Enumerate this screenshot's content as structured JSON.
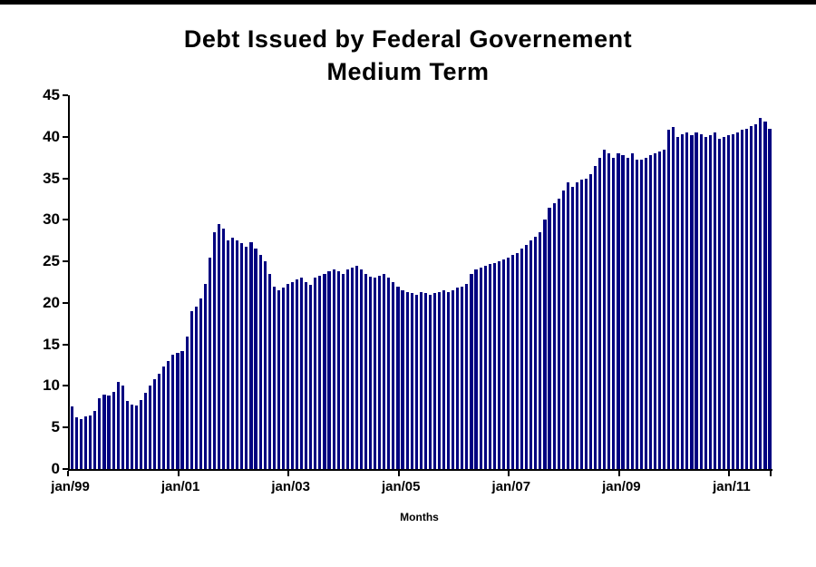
{
  "page": {
    "title_line1": "Debt Issued by Federal Governement",
    "title_line2": "Medium Term",
    "xlabel": "Months"
  },
  "chart_data": {
    "type": "bar",
    "title": "Debt Issued by Federal Governement Medium Term",
    "xlabel": "Months",
    "ylabel": "",
    "ylim": [
      0,
      45
    ],
    "yticks": [
      0,
      5,
      10,
      15,
      20,
      25,
      30,
      35,
      40,
      45
    ],
    "grid": false,
    "legend": "none",
    "bar_color": "#000080",
    "x_start": "jan/99",
    "x_tick_labels": [
      "jan/99",
      "jan/01",
      "jan/03",
      "jan/05",
      "jan/07",
      "jan/09",
      "jan/11"
    ],
    "months_per_tick": 24,
    "values": [
      7.5,
      6.2,
      6.0,
      6.3,
      6.5,
      7.0,
      8.5,
      9.0,
      8.8,
      9.3,
      10.5,
      10.0,
      8.2,
      7.8,
      7.7,
      8.3,
      9.2,
      10.0,
      10.8,
      11.5,
      12.3,
      13.0,
      13.8,
      14.0,
      14.2,
      16.0,
      19.0,
      19.5,
      20.5,
      22.3,
      25.5,
      28.5,
      29.5,
      29.0,
      27.5,
      27.8,
      27.5,
      27.2,
      26.8,
      27.3,
      26.5,
      25.8,
      25.0,
      23.5,
      22.0,
      21.5,
      21.8,
      22.3,
      22.5,
      22.8,
      23.0,
      22.5,
      22.2,
      23.0,
      23.3,
      23.5,
      23.8,
      24.0,
      23.8,
      23.5,
      24.0,
      24.2,
      24.5,
      24.0,
      23.5,
      23.2,
      23.0,
      23.3,
      23.5,
      23.0,
      22.5,
      22.0,
      21.5,
      21.3,
      21.2,
      21.0,
      21.3,
      21.2,
      21.0,
      21.2,
      21.3,
      21.5,
      21.3,
      21.5,
      21.8,
      22.0,
      22.3,
      23.5,
      24.0,
      24.3,
      24.5,
      24.7,
      24.8,
      25.0,
      25.2,
      25.5,
      25.8,
      26.0,
      26.5,
      27.0,
      27.5,
      28.0,
      28.5,
      30.0,
      31.5,
      32.0,
      32.5,
      33.5,
      34.5,
      34.0,
      34.5,
      34.8,
      35.0,
      35.5,
      36.5,
      37.5,
      38.5,
      38.0,
      37.5,
      38.0,
      37.8,
      37.5,
      38.0,
      37.3,
      37.2,
      37.5,
      37.8,
      38.0,
      38.2,
      38.5,
      40.8,
      41.2,
      40.0,
      40.3,
      40.5,
      40.2,
      40.5,
      40.3,
      40.0,
      40.2,
      40.5,
      39.8,
      40.0,
      40.2,
      40.3,
      40.5,
      40.8,
      41.0,
      41.3,
      41.5,
      42.3,
      41.8,
      41.0
    ]
  }
}
